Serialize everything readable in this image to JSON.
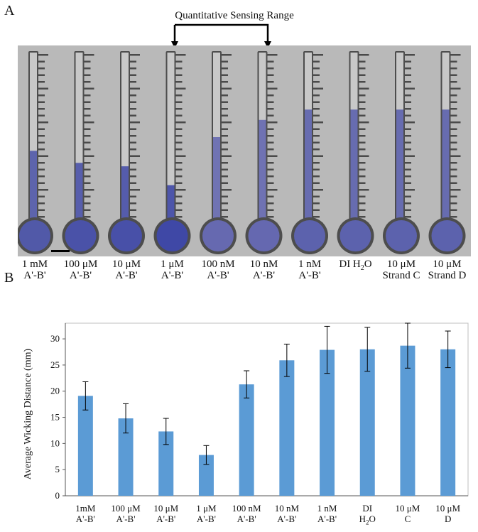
{
  "panel_a": {
    "letter": "A",
    "range_label": "Quantitative Sensing Range",
    "samples": [
      {
        "line1": "1 mM",
        "line2": "A'-B'",
        "fill": 0.42,
        "color": "#5159a8"
      },
      {
        "line1": "100 μM",
        "line2": "A'-B'",
        "fill": 0.35,
        "color": "#4a52a8"
      },
      {
        "line1": "10 μM",
        "line2": "A'-B'",
        "fill": 0.33,
        "color": "#4850a8"
      },
      {
        "line1": "1 μM",
        "line2": "A'-B'",
        "fill": 0.22,
        "color": "#3f48a6"
      },
      {
        "line1": "100 nM",
        "line2": "A'-B'",
        "fill": 0.5,
        "color": "#6669b0"
      },
      {
        "line1": "10 nM",
        "line2": "A'-B'",
        "fill": 0.6,
        "color": "#6568b0"
      },
      {
        "line1": "1 nM",
        "line2": "A'-B'",
        "fill": 0.66,
        "color": "#5c62ad"
      },
      {
        "line1": "DI H",
        "line1_sub": "2",
        "line1_tail": "O",
        "line2": "",
        "fill": 0.66,
        "color": "#5c62ad"
      },
      {
        "line1": "10 μM",
        "line2": "Strand C",
        "fill": 0.66,
        "color": "#5c62ad"
      },
      {
        "line1": "10 μM",
        "line2": "Strand D",
        "fill": 0.66,
        "color": "#5c62ad"
      }
    ]
  },
  "panel_b": {
    "letter": "B",
    "ylabel": "Average Wicking Distance (mm)"
  },
  "chart_data": {
    "type": "bar",
    "categories": [
      {
        "line1": "1mM",
        "line2": "A'-B'"
      },
      {
        "line1": "100 μM",
        "line2": "A'-B'"
      },
      {
        "line1": "10 μM",
        "line2": "A'-B'"
      },
      {
        "line1": "1 μM",
        "line2": "A'-B'"
      },
      {
        "line1": "100 nM",
        "line2": "A'-B'"
      },
      {
        "line1": "10 nM",
        "line2": "A'-B'"
      },
      {
        "line1": "1 nM",
        "line2": "A'-B'"
      },
      {
        "line1": "DI",
        "line2": "H",
        "line2_sub": "2",
        "line2_tail": "O"
      },
      {
        "line1": "10 μM",
        "line2": "C"
      },
      {
        "line1": "10 μM",
        "line2": "D"
      }
    ],
    "values": [
      19.1,
      14.8,
      12.3,
      7.8,
      21.3,
      25.9,
      27.9,
      28.0,
      28.7,
      28.0
    ],
    "errors": [
      2.7,
      2.8,
      2.5,
      1.8,
      2.6,
      3.1,
      4.5,
      4.2,
      4.3,
      3.5
    ],
    "ylabel": "Average Wicking Distance (mm)",
    "ylim": [
      0,
      33
    ],
    "yticks": [
      0,
      5,
      10,
      15,
      20,
      25,
      30
    ],
    "grid": false,
    "bar_color": "#5b9bd5"
  }
}
